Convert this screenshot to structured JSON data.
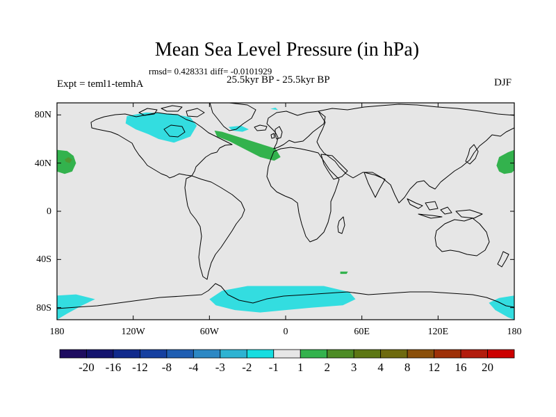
{
  "title": "Mean Sea Level Pressure (in hPa)",
  "stats_line": "rmsd= 0.428331 diff= -0.0101929",
  "period": "25.5kyr BP - 25.5kyr BP",
  "experiment": "Expt = teml1-temhA",
  "season": "DJF",
  "map": {
    "lat_range": [
      -90,
      90
    ],
    "lon_range": [
      -180,
      180
    ],
    "background_color": "#e6e6e6",
    "lat_ticks": [
      {
        "lat": 80,
        "label": "80N"
      },
      {
        "lat": 40,
        "label": "40N"
      },
      {
        "lat": 0,
        "label": "0"
      },
      {
        "lat": -40,
        "label": "40S"
      },
      {
        "lat": -80,
        "label": "80S"
      }
    ],
    "lon_ticks": [
      {
        "lon": -180,
        "label": "180"
      },
      {
        "lon": -120,
        "label": "120W"
      },
      {
        "lon": -60,
        "label": "60W"
      },
      {
        "lon": 0,
        "label": "0"
      },
      {
        "lon": 60,
        "label": "60E"
      },
      {
        "lon": 120,
        "label": "120E"
      },
      {
        "lon": 180,
        "label": "180"
      }
    ],
    "anomaly_regions": [
      {
        "name": "north-pacific-high",
        "bin": "1 to 2",
        "color": "#33b24d",
        "points": [
          [
            180,
            51
          ],
          [
            175,
            49
          ],
          [
            168,
            45
          ],
          [
            166,
            38
          ],
          [
            168,
            33
          ],
          [
            172,
            31
          ],
          [
            178,
            32
          ],
          [
            180,
            34
          ]
        ]
      },
      {
        "name": "north-pacific-high-east",
        "bin": "1 to 2",
        "color": "#33b24d",
        "points": [
          [
            -180,
            33
          ],
          [
            -174,
            31
          ],
          [
            -168,
            33
          ],
          [
            -165,
            40
          ],
          [
            -167,
            46
          ],
          [
            -172,
            50
          ],
          [
            -180,
            51
          ]
        ]
      },
      {
        "name": "north-pacific-core",
        "bin": "2 to 3",
        "color": "#4d9933",
        "points": [
          [
            -174,
            43
          ],
          [
            -171,
            45
          ],
          [
            -168,
            43
          ],
          [
            -170,
            40
          ],
          [
            -173,
            41
          ]
        ]
      },
      {
        "name": "north-atlantic-band",
        "bin": "1 to 2",
        "color": "#33b24d",
        "points": [
          [
            -56,
            67
          ],
          [
            -50,
            66
          ],
          [
            -35,
            61
          ],
          [
            -20,
            56
          ],
          [
            -8,
            52
          ],
          [
            -4,
            45
          ],
          [
            -9,
            42
          ],
          [
            -20,
            45
          ],
          [
            -33,
            52
          ],
          [
            -44,
            58
          ],
          [
            -54,
            62
          ]
        ]
      },
      {
        "name": "canada-arctic-low",
        "bin": "-2 to -1",
        "color": "#33dde0",
        "points": [
          [
            -125,
            79
          ],
          [
            -110,
            82
          ],
          [
            -90,
            81
          ],
          [
            -75,
            78
          ],
          [
            -70,
            71
          ],
          [
            -75,
            62
          ],
          [
            -88,
            57
          ],
          [
            -100,
            60
          ],
          [
            -108,
            64
          ],
          [
            -118,
            68
          ],
          [
            -126,
            73
          ]
        ]
      },
      {
        "name": "greenland-sea-low",
        "bin": "-2 to -1",
        "color": "#33dde0",
        "points": [
          [
            -45,
            70
          ],
          [
            -35,
            71
          ],
          [
            -29,
            68
          ],
          [
            -34,
            66
          ],
          [
            -42,
            67
          ]
        ]
      },
      {
        "name": "arctic-small-low",
        "bin": "-2 to -1",
        "color": "#33dde0",
        "points": [
          [
            -12,
            85
          ],
          [
            -8,
            86
          ],
          [
            -6,
            84
          ]
        ]
      },
      {
        "name": "south-indian-small",
        "bin": "1 to 2",
        "color": "#33b24d",
        "points": [
          [
            43,
            -50
          ],
          [
            49,
            -50
          ],
          [
            48,
            -52
          ],
          [
            43,
            -52
          ]
        ]
      },
      {
        "name": "southern-ocean-low-atlantic",
        "bin": "-2 to -1",
        "color": "#33dde0",
        "points": [
          [
            -60,
            -73
          ],
          [
            -50,
            -66
          ],
          [
            -30,
            -62
          ],
          [
            0,
            -62
          ],
          [
            30,
            -62
          ],
          [
            50,
            -67
          ],
          [
            55,
            -73
          ],
          [
            45,
            -78
          ],
          [
            20,
            -80
          ],
          [
            0,
            -82
          ],
          [
            -20,
            -84
          ],
          [
            -40,
            -82
          ],
          [
            -55,
            -78
          ]
        ]
      },
      {
        "name": "southern-ocean-low-pacific",
        "bin": "-2 to -1",
        "color": "#33dde0",
        "points": [
          [
            -180,
            -70
          ],
          [
            -165,
            -69
          ],
          [
            -150,
            -73
          ],
          [
            -160,
            -78
          ],
          [
            -172,
            -85
          ],
          [
            -180,
            -90
          ]
        ]
      },
      {
        "name": "antarctic-west-low",
        "bin": "-2 to -1",
        "color": "#33dde0",
        "points": [
          [
            180,
            -70
          ],
          [
            168,
            -72
          ],
          [
            160,
            -76
          ],
          [
            165,
            -82
          ],
          [
            175,
            -88
          ],
          [
            180,
            -90
          ]
        ]
      }
    ]
  },
  "legend": {
    "colors": [
      "#1e0c60",
      "#14146e",
      "#112a8c",
      "#1640a0",
      "#1f5eb2",
      "#2c88c4",
      "#2db3d2",
      "#16dde0",
      "#e6e6e6",
      "#33b24d",
      "#4d8c26",
      "#5d7714",
      "#6e6a0e",
      "#8a4f0a",
      "#9e3007",
      "#b21c0d",
      "#cc0000"
    ],
    "labels": [
      "-20",
      "-16",
      "-12",
      "-8",
      "-4",
      "-3",
      "-2",
      "-1",
      "1",
      "2",
      "3",
      "4",
      "8",
      "12",
      "16",
      "20"
    ]
  }
}
